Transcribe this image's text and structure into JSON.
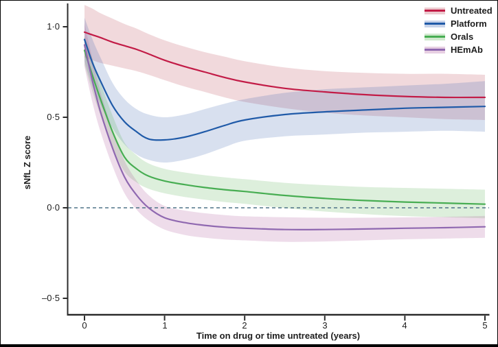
{
  "chart_data": {
    "type": "line",
    "title": "",
    "xlabel": "Time on drug or time untreated (years)",
    "ylabel": "sNfL Z score",
    "xlim": [
      0,
      5
    ],
    "ylim": [
      -0.59,
      1.12
    ],
    "grid": false,
    "legend_position": "top-right",
    "axis_color": "#2b2b2b",
    "text_color": "#1d1d1d",
    "zero_line": {
      "value": 0.0,
      "style": "dashed",
      "color": "#4e7487"
    },
    "xticks": [
      {
        "value": 0,
        "label": "0"
      },
      {
        "value": 1,
        "label": "1"
      },
      {
        "value": 2,
        "label": "2"
      },
      {
        "value": 3,
        "label": "3"
      },
      {
        "value": 4,
        "label": "4"
      },
      {
        "value": 5,
        "label": "5"
      }
    ],
    "yticks": [
      {
        "value": 1.0,
        "label": "1·0"
      },
      {
        "value": 0.5,
        "label": "0·5"
      },
      {
        "value": 0.0,
        "label": "0·0"
      },
      {
        "value": -0.5,
        "label": "–0·5"
      }
    ],
    "x": [
      0,
      0.1,
      0.2,
      0.35,
      0.5,
      0.65,
      0.8,
      1.0,
      1.25,
      1.5,
      1.75,
      2.0,
      2.5,
      3.0,
      3.5,
      4.0,
      4.5,
      5.0
    ],
    "series": [
      {
        "name": "Untreated",
        "color": "#c21b46",
        "band_color": "#c05060",
        "band_opacity": 0.22,
        "y": [
          0.97,
          0.955,
          0.94,
          0.915,
          0.895,
          0.875,
          0.85,
          0.815,
          0.78,
          0.75,
          0.72,
          0.695,
          0.66,
          0.64,
          0.625,
          0.615,
          0.61,
          0.61
        ],
        "upper": [
          1.12,
          1.1,
          1.075,
          1.045,
          1.015,
          0.99,
          0.96,
          0.925,
          0.89,
          0.86,
          0.835,
          0.81,
          0.775,
          0.755,
          0.745,
          0.74,
          0.74,
          0.735
        ],
        "lower": [
          0.83,
          0.815,
          0.8,
          0.785,
          0.77,
          0.755,
          0.735,
          0.705,
          0.67,
          0.64,
          0.61,
          0.585,
          0.55,
          0.525,
          0.51,
          0.5,
          0.49,
          0.485
        ]
      },
      {
        "name": "Platform",
        "color": "#1f5aa8",
        "band_color": "#3a62b0",
        "band_opacity": 0.2,
        "y": [
          0.93,
          0.8,
          0.7,
          0.565,
          0.475,
          0.42,
          0.38,
          0.375,
          0.39,
          0.42,
          0.455,
          0.485,
          0.515,
          0.53,
          0.54,
          0.55,
          0.555,
          0.56
        ],
        "upper": [
          1.05,
          0.93,
          0.83,
          0.69,
          0.6,
          0.545,
          0.515,
          0.5,
          0.515,
          0.545,
          0.575,
          0.6,
          0.635,
          0.655,
          0.665,
          0.675,
          0.685,
          0.7
        ],
        "lower": [
          0.81,
          0.67,
          0.57,
          0.44,
          0.35,
          0.295,
          0.265,
          0.25,
          0.265,
          0.295,
          0.335,
          0.37,
          0.395,
          0.405,
          0.415,
          0.42,
          0.425,
          0.42
        ]
      },
      {
        "name": "Orals",
        "color": "#47ad52",
        "band_color": "#57b14f",
        "band_opacity": 0.2,
        "y": [
          0.87,
          0.73,
          0.6,
          0.42,
          0.28,
          0.215,
          0.175,
          0.148,
          0.128,
          0.112,
          0.1,
          0.09,
          0.068,
          0.052,
          0.04,
          0.032,
          0.026,
          0.02
        ],
        "upper": [
          0.95,
          0.82,
          0.69,
          0.51,
          0.36,
          0.29,
          0.245,
          0.215,
          0.195,
          0.18,
          0.168,
          0.158,
          0.138,
          0.125,
          0.115,
          0.11,
          0.105,
          0.1
        ],
        "lower": [
          0.79,
          0.64,
          0.51,
          0.33,
          0.2,
          0.14,
          0.105,
          0.08,
          0.06,
          0.045,
          0.032,
          0.022,
          -0.002,
          -0.021,
          -0.035,
          -0.046,
          -0.052,
          -0.058
        ]
      },
      {
        "name": "HEmAb",
        "color": "#8f68b0",
        "band_color": "#b060a0",
        "band_opacity": 0.22,
        "y": [
          0.9,
          0.7,
          0.53,
          0.33,
          0.17,
          0.07,
          0.0,
          -0.055,
          -0.082,
          -0.097,
          -0.107,
          -0.113,
          -0.12,
          -0.12,
          -0.117,
          -0.113,
          -0.11,
          -0.105
        ],
        "upper": [
          1.02,
          0.82,
          0.64,
          0.43,
          0.26,
          0.15,
          0.07,
          0.01,
          -0.015,
          -0.03,
          -0.04,
          -0.047,
          -0.052,
          -0.055,
          -0.055,
          -0.053,
          -0.05,
          -0.045
        ],
        "lower": [
          0.78,
          0.58,
          0.42,
          0.23,
          0.08,
          -0.01,
          -0.07,
          -0.12,
          -0.15,
          -0.165,
          -0.175,
          -0.18,
          -0.188,
          -0.186,
          -0.18,
          -0.174,
          -0.17,
          -0.166
        ]
      }
    ]
  }
}
